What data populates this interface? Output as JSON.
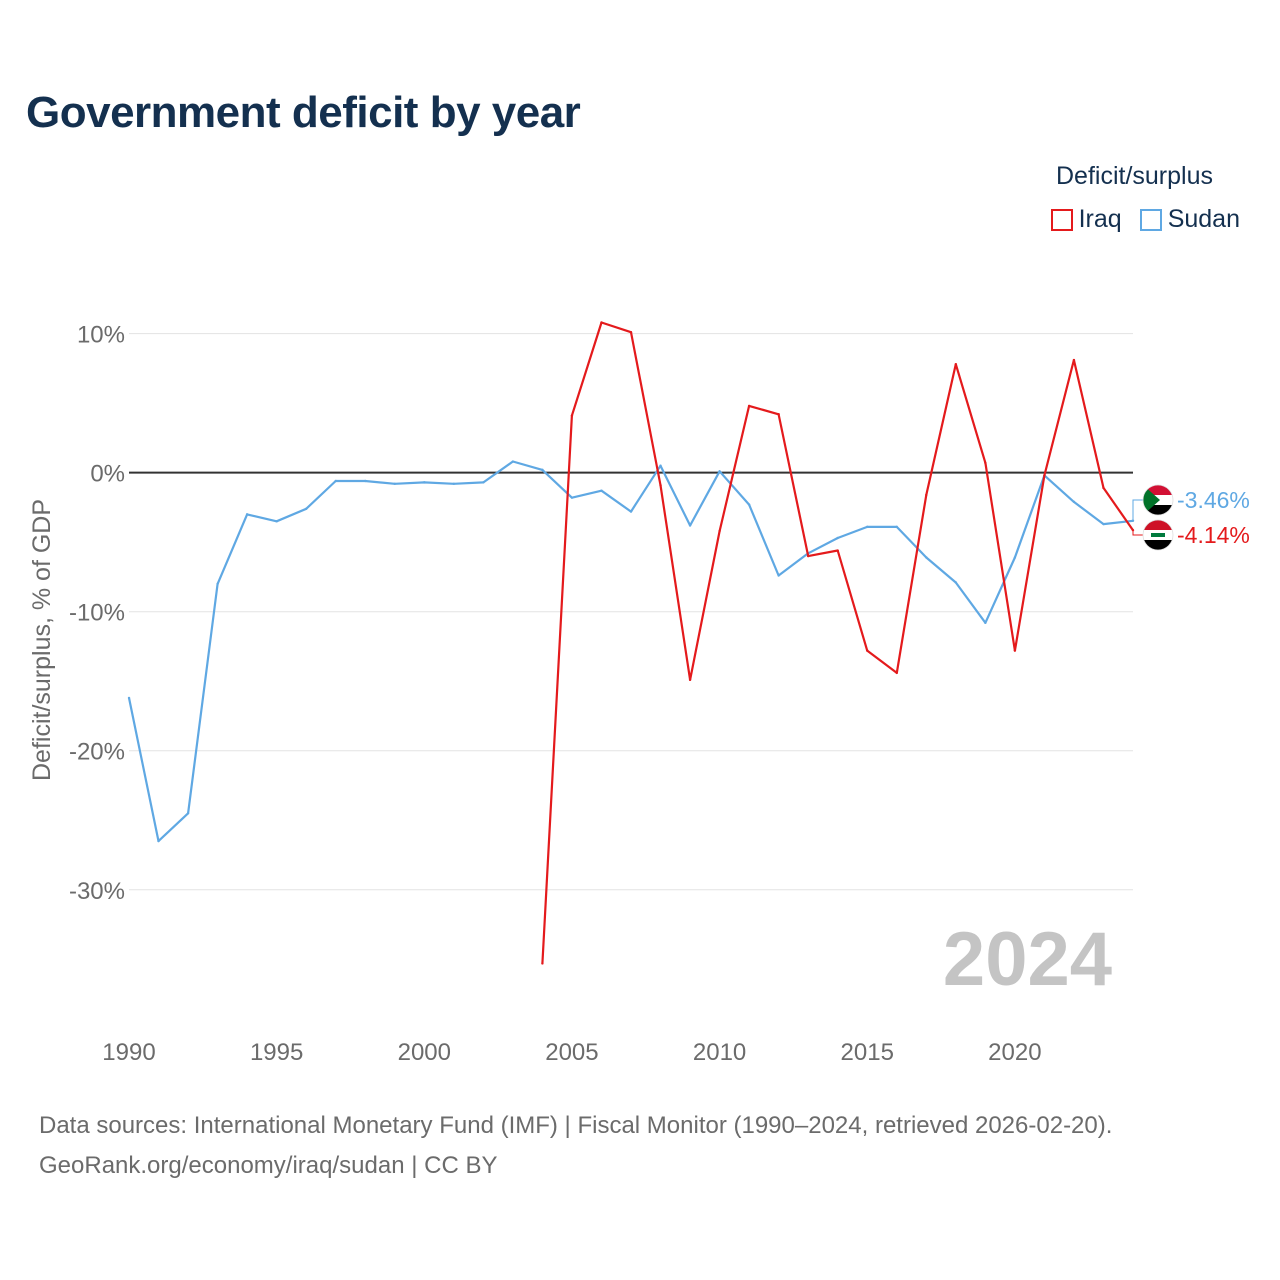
{
  "title": "Government deficit by year",
  "legend": {
    "title": "Deficit/surplus",
    "items": [
      {
        "label": "Iraq",
        "color": "#e41a1c"
      },
      {
        "label": "Sudan",
        "color": "#5fa8e3"
      }
    ]
  },
  "footer": {
    "line1": "Data sources: International Monetary Fund (IMF) | Fiscal Monitor (1990–2024, retrieved 2026-02-20).",
    "line2": "GeoRank.org/economy/iraq/sudan | CC BY"
  },
  "chart_data": {
    "type": "line",
    "title": "Government deficit by year",
    "ylabel": "Deficit/surplus, % of GDP",
    "xlabel": "",
    "xlim": [
      1990,
      2024
    ],
    "ylim": [
      -38,
      14
    ],
    "xticks": [
      1990,
      1995,
      2000,
      2005,
      2010,
      2015,
      2020
    ],
    "xtick_labels": [
      "1990",
      "1995",
      "2000",
      "2005",
      "2010",
      "2015",
      "2020"
    ],
    "yticks": [
      10,
      0,
      -10,
      -20,
      -30
    ],
    "ytick_labels": [
      "10%",
      "0%",
      "-10%",
      "-20%",
      "-30%"
    ],
    "year_watermark": "2024",
    "series": [
      {
        "name": "Iraq",
        "color": "#e41a1c",
        "x": [
          2004,
          2005,
          2006,
          2007,
          2008,
          2009,
          2010,
          2011,
          2012,
          2013,
          2014,
          2015,
          2016,
          2017,
          2018,
          2019,
          2020,
          2021,
          2022,
          2023,
          2024
        ],
        "values": [
          -35.3,
          4.1,
          10.8,
          10.1,
          -0.9,
          -14.9,
          -4.2,
          4.8,
          4.2,
          -6.0,
          -5.6,
          -12.8,
          -14.4,
          -1.6,
          7.8,
          0.7,
          -12.8,
          -0.2,
          8.1,
          -1.1,
          -4.14
        ],
        "end_label": "-4.14%"
      },
      {
        "name": "Sudan",
        "color": "#5fa8e3",
        "x": [
          1990,
          1991,
          1992,
          1993,
          1994,
          1995,
          1996,
          1997,
          1998,
          1999,
          2000,
          2001,
          2002,
          2003,
          2004,
          2005,
          2006,
          2007,
          2008,
          2009,
          2010,
          2011,
          2012,
          2013,
          2014,
          2015,
          2016,
          2017,
          2018,
          2019,
          2020,
          2021,
          2022,
          2023,
          2024
        ],
        "values": [
          -16.2,
          -26.5,
          -24.5,
          -8.0,
          -3.0,
          -3.5,
          -2.6,
          -0.6,
          -0.6,
          -0.8,
          -0.7,
          -0.8,
          -0.7,
          0.8,
          0.2,
          -1.8,
          -1.3,
          -2.8,
          0.5,
          -3.8,
          0.1,
          -2.3,
          -7.4,
          -5.8,
          -4.7,
          -3.9,
          -3.9,
          -6.1,
          -7.9,
          -10.8,
          -6.1,
          -0.2,
          -2.1,
          -3.7,
          -3.46
        ],
        "end_label": "-3.46%"
      }
    ]
  }
}
